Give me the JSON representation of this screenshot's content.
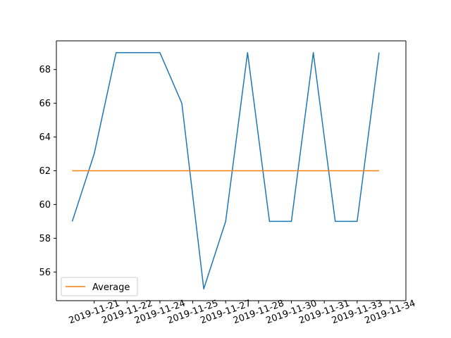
{
  "chart_data": {
    "type": "line",
    "title": "",
    "xlabel": "",
    "ylabel": "",
    "x_tick_labels": [
      "2019-11-21",
      "2019-11-22",
      "2019-11-24",
      "2019-11-25",
      "2019-11-27",
      "2019-11-28",
      "2019-11-30",
      "2019-11-31",
      "2019-11-33",
      "2019-11-34"
    ],
    "x_tick_positions": [
      1,
      2.5,
      4,
      5.5,
      7,
      8.5,
      10,
      11.5,
      13,
      14.5
    ],
    "y_ticks": [
      56,
      58,
      60,
      62,
      64,
      66,
      68
    ],
    "xlim": [
      -0.725,
      15.225
    ],
    "ylim": [
      54.3,
      69.7
    ],
    "grid": false,
    "legend_position": "lower-left",
    "series": [
      {
        "color": "#1f77b4",
        "x": [
          0,
          1,
          2,
          3,
          4,
          5,
          6,
          7,
          8,
          9,
          10,
          11,
          12,
          13,
          14
        ],
        "y": [
          59,
          63,
          69,
          69,
          69,
          66,
          55,
          59,
          69,
          59,
          59,
          69,
          59,
          59,
          69
        ]
      },
      {
        "name": "Average",
        "color": "#ff7f0e",
        "x": [
          0,
          14
        ],
        "y": [
          62,
          62
        ]
      }
    ]
  }
}
